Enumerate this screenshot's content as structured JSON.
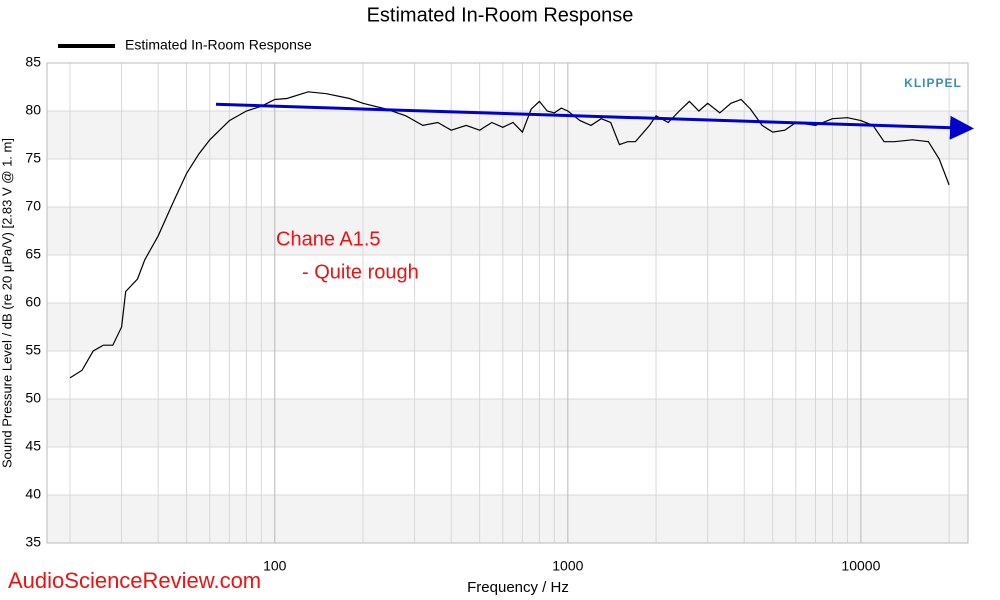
{
  "chart_data": {
    "type": "line",
    "title": "Estimated In-Room Response",
    "xlabel": "Frequency / Hz",
    "ylabel": "Sound Pressure Level / dB (re 20 µPa/V)  [2.83  V @ 1. m]",
    "xscale": "log",
    "xlim": [
      16.7,
      23200
    ],
    "ylim": [
      35,
      85
    ],
    "xticks": [
      100,
      1000,
      10000
    ],
    "xgrid_minor": [
      20,
      30,
      40,
      50,
      60,
      70,
      80,
      90,
      200,
      300,
      400,
      500,
      600,
      700,
      800,
      900,
      2000,
      3000,
      4000,
      5000,
      6000,
      7000,
      8000,
      9000,
      20000
    ],
    "yticks": [
      35,
      40,
      45,
      50,
      55,
      60,
      65,
      70,
      75,
      80,
      85
    ],
    "grid": true,
    "legend": "top-left",
    "x": [
      20,
      22,
      24,
      26,
      28,
      30,
      31,
      34,
      36,
      40,
      45,
      50,
      55,
      60,
      70,
      80,
      90,
      100,
      110,
      130,
      150,
      180,
      200,
      240,
      280,
      320,
      360,
      400,
      450,
      500,
      550,
      600,
      650,
      700,
      750,
      800,
      850,
      900,
      950,
      1000,
      1100,
      1200,
      1300,
      1400,
      1500,
      1600,
      1700,
      1900,
      2000,
      2200,
      2400,
      2600,
      2800,
      3000,
      3300,
      3600,
      3900,
      4200,
      4600,
      5000,
      5500,
      6000,
      7000,
      8000,
      9000,
      10000,
      11000,
      12000,
      13000,
      15000,
      17000,
      18500,
      20000
    ],
    "series": [
      {
        "name": "Estimated In-Room Response",
        "color": "#000000",
        "values": [
          52.2,
          53,
          55,
          55.6,
          55.6,
          57.5,
          61.2,
          62.5,
          64.5,
          67,
          70.5,
          73.5,
          75.5,
          77,
          79,
          80,
          80.5,
          81.2,
          81.3,
          82,
          81.8,
          81.3,
          80.8,
          80.2,
          79.5,
          78.5,
          78.8,
          78,
          78.5,
          78,
          78.8,
          78.3,
          78.8,
          77.8,
          80.2,
          81,
          80,
          79.8,
          80.3,
          80,
          79,
          78.5,
          79.2,
          78.8,
          76.5,
          76.8,
          76.8,
          78.5,
          79.5,
          78.8,
          80,
          81,
          80,
          80.8,
          79.8,
          80.8,
          81.2,
          80.2,
          78.5,
          77.8,
          78,
          78.8,
          78.5,
          79.2,
          79.3,
          79,
          78.5,
          76.8,
          76.8,
          77,
          76.8,
          75,
          72.3
        ]
      }
    ],
    "trend": {
      "x": [
        63,
        23200
      ],
      "values": [
        80.7,
        78.2
      ],
      "color": "#0000cc"
    },
    "annotations": [
      {
        "text": "Chane A1.5",
        "color": "#ee1111"
      },
      {
        "text": "- Quite rough",
        "color": "#ee1111"
      }
    ],
    "watermark": "AudioScienceReview.com",
    "logo": "KLIPPEL"
  }
}
